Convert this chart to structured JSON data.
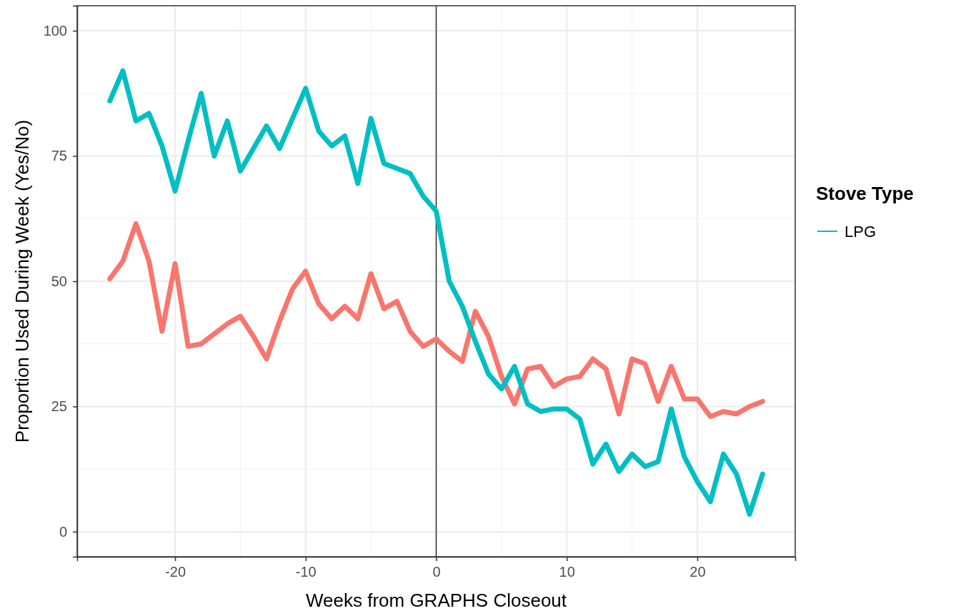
{
  "chart_data": {
    "type": "line",
    "xlabel": "Weeks from GRAPHS Closeout",
    "ylabel": "Proportion Used During Week (Yes/No)",
    "legend_title": "Stove Type",
    "x": [
      -25,
      -24,
      -23,
      -22,
      -21,
      -20,
      -19,
      -18,
      -17,
      -16,
      -15,
      -14,
      -13,
      -12,
      -11,
      -10,
      -9,
      -8,
      -7,
      -6,
      -5,
      -4,
      -3,
      -2,
      -1,
      0,
      1,
      2,
      3,
      4,
      5,
      6,
      7,
      8,
      9,
      10,
      11,
      12,
      13,
      14,
      15,
      16,
      17,
      18,
      19,
      20,
      21,
      22,
      23,
      24,
      25
    ],
    "series": [
      {
        "color": "#f8766d",
        "values": [
          50.5,
          54,
          61.5,
          54,
          40,
          53.5,
          37,
          37.5,
          39.5,
          41.5,
          43,
          39,
          34.5,
          42,
          48.5,
          52,
          45.5,
          42.5,
          45,
          42.5,
          51.5,
          44.5,
          46,
          40,
          37,
          38.5,
          36,
          34,
          44,
          39,
          31,
          25.5,
          32.5,
          33,
          29,
          30.5,
          31,
          34.5,
          32.5,
          23.5,
          34.5,
          33.5,
          26,
          33,
          26.5,
          26.5,
          23,
          24,
          23.5,
          25,
          26
        ]
      },
      {
        "name": "LPG",
        "color": "#00bfc4",
        "values": [
          86,
          92,
          82,
          83.5,
          77,
          68,
          78,
          87.5,
          75,
          82,
          72,
          76.5,
          81,
          76.5,
          82.5,
          88.5,
          80,
          77,
          79,
          69.5,
          82.5,
          73.5,
          72.5,
          71.5,
          67,
          64,
          50,
          45,
          38,
          31.5,
          28.5,
          33,
          25.5,
          24,
          24.5,
          24.5,
          22.5,
          13.5,
          17.5,
          12,
          15.5,
          13,
          14,
          24.5,
          15,
          10,
          6,
          15.5,
          11.5,
          3.5,
          11.5
        ]
      }
    ],
    "xlim": [
      -27.5,
      27.5
    ],
    "xticks": [
      -20,
      -10,
      0,
      10,
      20
    ],
    "ylim": [
      -5,
      105
    ],
    "yticks": [
      0,
      25,
      50,
      75,
      100
    ],
    "grid": true,
    "legend": "right",
    "line_style": "solid",
    "marker": "none",
    "ref_lines": [
      {
        "axis": "x",
        "value": 0,
        "color": "#333333"
      }
    ]
  }
}
